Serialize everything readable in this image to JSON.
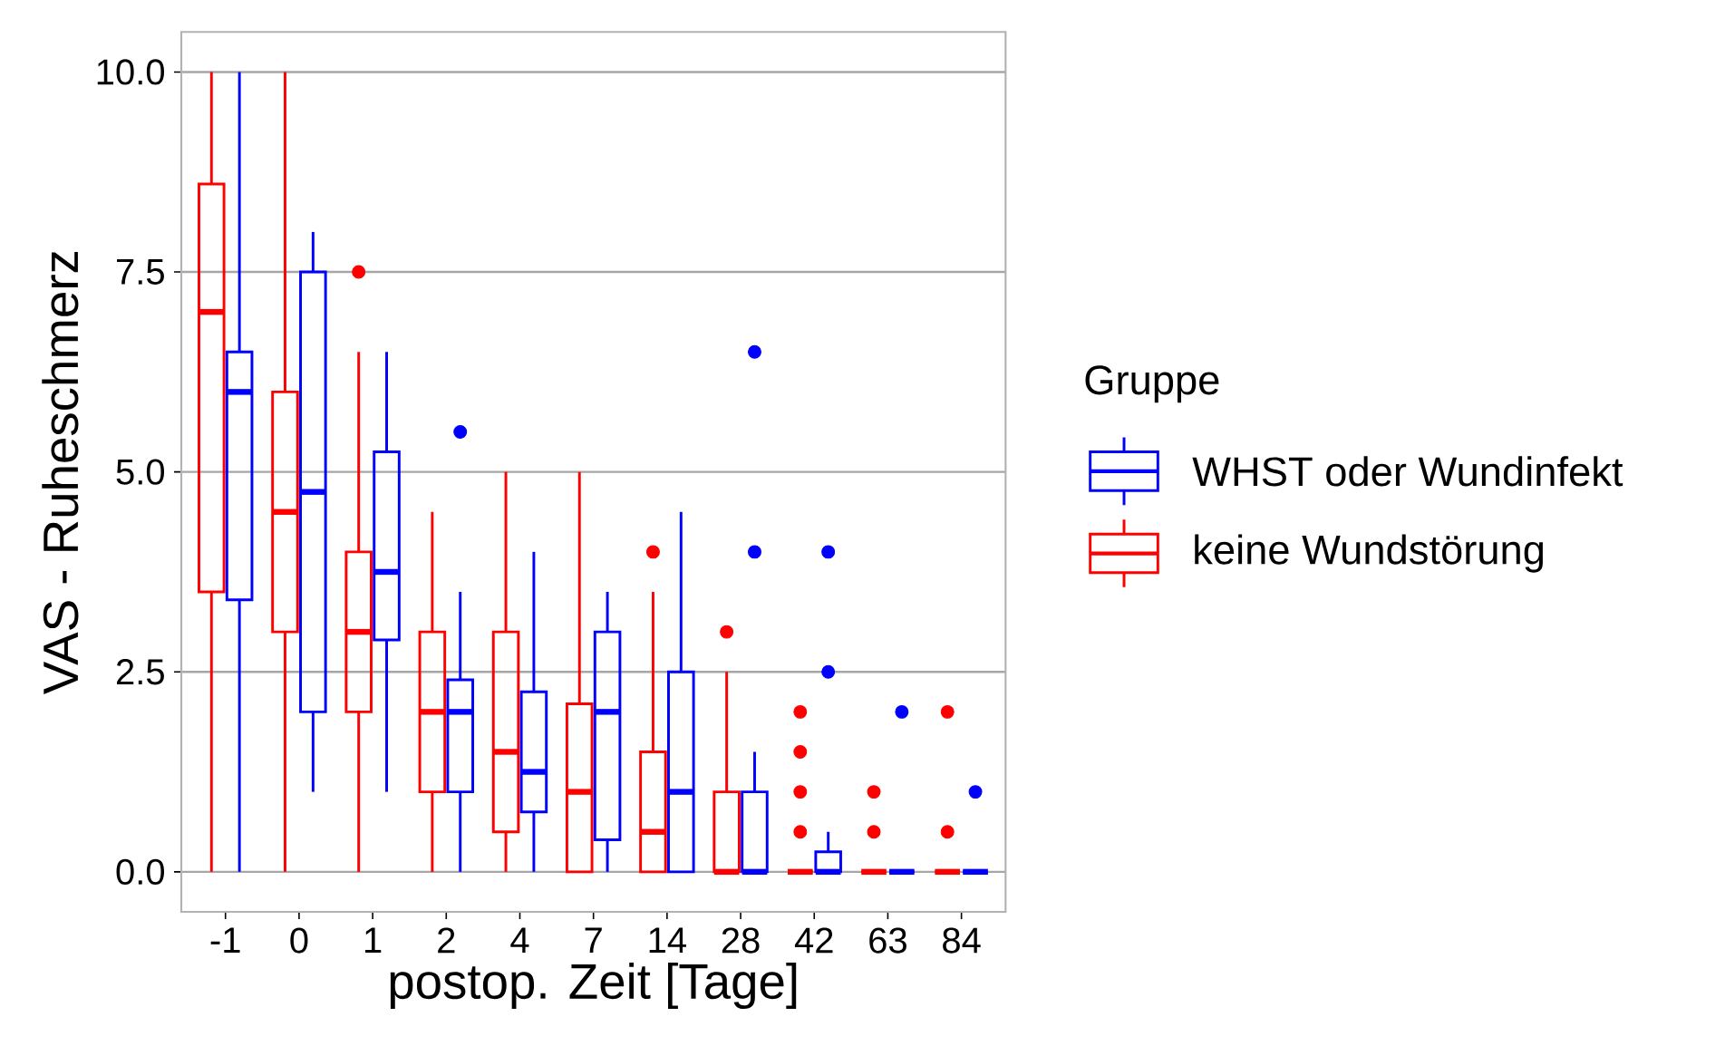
{
  "chart_data": {
    "type": "box",
    "xlabel": "postop. Zeit [Tage]",
    "ylabel": "VAS - Ruheschmerz",
    "legend_title": "Gruppe",
    "legend": "right",
    "grid": "y",
    "categories": [
      "-1",
      "0",
      "1",
      "2",
      "4",
      "7",
      "14",
      "28",
      "42",
      "63",
      "84"
    ],
    "ylim": [
      -0.5,
      10.5
    ],
    "yticks": [
      {
        "value": 0,
        "label": "0.0"
      },
      {
        "value": 2.5,
        "label": "2.5"
      },
      {
        "value": 5,
        "label": "5.0"
      },
      {
        "value": 7.5,
        "label": "7.5"
      },
      {
        "value": 10,
        "label": "10.0"
      }
    ],
    "series": [
      {
        "name": "keine Wundstörung",
        "color": "#ff0000",
        "boxes": [
          {
            "low": 0,
            "q1": 3.5,
            "median": 7,
            "q3": 8.6,
            "high": 10
          },
          {
            "low": 0,
            "q1": 3,
            "median": 4.5,
            "q3": 6,
            "high": 10
          },
          {
            "low": 0,
            "q1": 2,
            "median": 3,
            "q3": 4,
            "high": 6.5,
            "outliers": [
              7.5
            ]
          },
          {
            "low": 0,
            "q1": 1,
            "median": 2,
            "q3": 3,
            "high": 4.5
          },
          {
            "low": 0,
            "q1": 0.5,
            "median": 1.5,
            "q3": 3,
            "high": 5
          },
          {
            "low": 0,
            "q1": 0,
            "median": 1,
            "q3": 2.1,
            "high": 5
          },
          {
            "low": 0,
            "q1": 0,
            "median": 0.5,
            "q3": 1.5,
            "high": 3.5,
            "outliers": [
              4
            ]
          },
          {
            "low": 0,
            "q1": 0,
            "median": 0,
            "q3": 1,
            "high": 2.5,
            "outliers": [
              3
            ]
          },
          {
            "low": 0,
            "q1": 0,
            "median": 0,
            "q3": 0,
            "high": 0,
            "outliers": [
              0.5,
              1,
              1.5,
              2
            ]
          },
          {
            "low": 0,
            "q1": 0,
            "median": 0,
            "q3": 0,
            "high": 0,
            "outliers": [
              0.5,
              1
            ]
          },
          {
            "low": 0,
            "q1": 0,
            "median": 0,
            "q3": 0,
            "high": 0,
            "outliers": [
              0.5,
              2
            ]
          }
        ]
      },
      {
        "name": "WHST oder Wundinfekt",
        "color": "#0000ff",
        "boxes": [
          {
            "low": 0,
            "q1": 3.4,
            "median": 6,
            "q3": 6.5,
            "high": 10
          },
          {
            "low": 1,
            "q1": 2,
            "median": 4.75,
            "q3": 7.5,
            "high": 8
          },
          {
            "low": 1,
            "q1": 2.9,
            "median": 3.75,
            "q3": 5.25,
            "high": 6.5
          },
          {
            "low": 0,
            "q1": 1,
            "median": 2,
            "q3": 2.4,
            "high": 3.5,
            "outliers": [
              5.5
            ]
          },
          {
            "low": 0,
            "q1": 0.75,
            "median": 1.25,
            "q3": 2.25,
            "high": 4
          },
          {
            "low": 0,
            "q1": 0.4,
            "median": 2,
            "q3": 3,
            "high": 3.5
          },
          {
            "low": 0,
            "q1": 0,
            "median": 1,
            "q3": 2.5,
            "high": 4.5
          },
          {
            "low": 0,
            "q1": 0,
            "median": 0,
            "q3": 1,
            "high": 1.5,
            "outliers": [
              4,
              6.5
            ]
          },
          {
            "low": 0,
            "q1": 0,
            "median": 0,
            "q3": 0.25,
            "high": 0.5,
            "outliers": [
              2.5,
              4
            ]
          },
          {
            "low": 0,
            "q1": 0,
            "median": 0,
            "q3": 0,
            "high": 0,
            "outliers": [
              2
            ]
          },
          {
            "low": 0,
            "q1": 0,
            "median": 0,
            "q3": 0,
            "high": 0,
            "outliers": [
              1
            ]
          }
        ]
      }
    ]
  }
}
